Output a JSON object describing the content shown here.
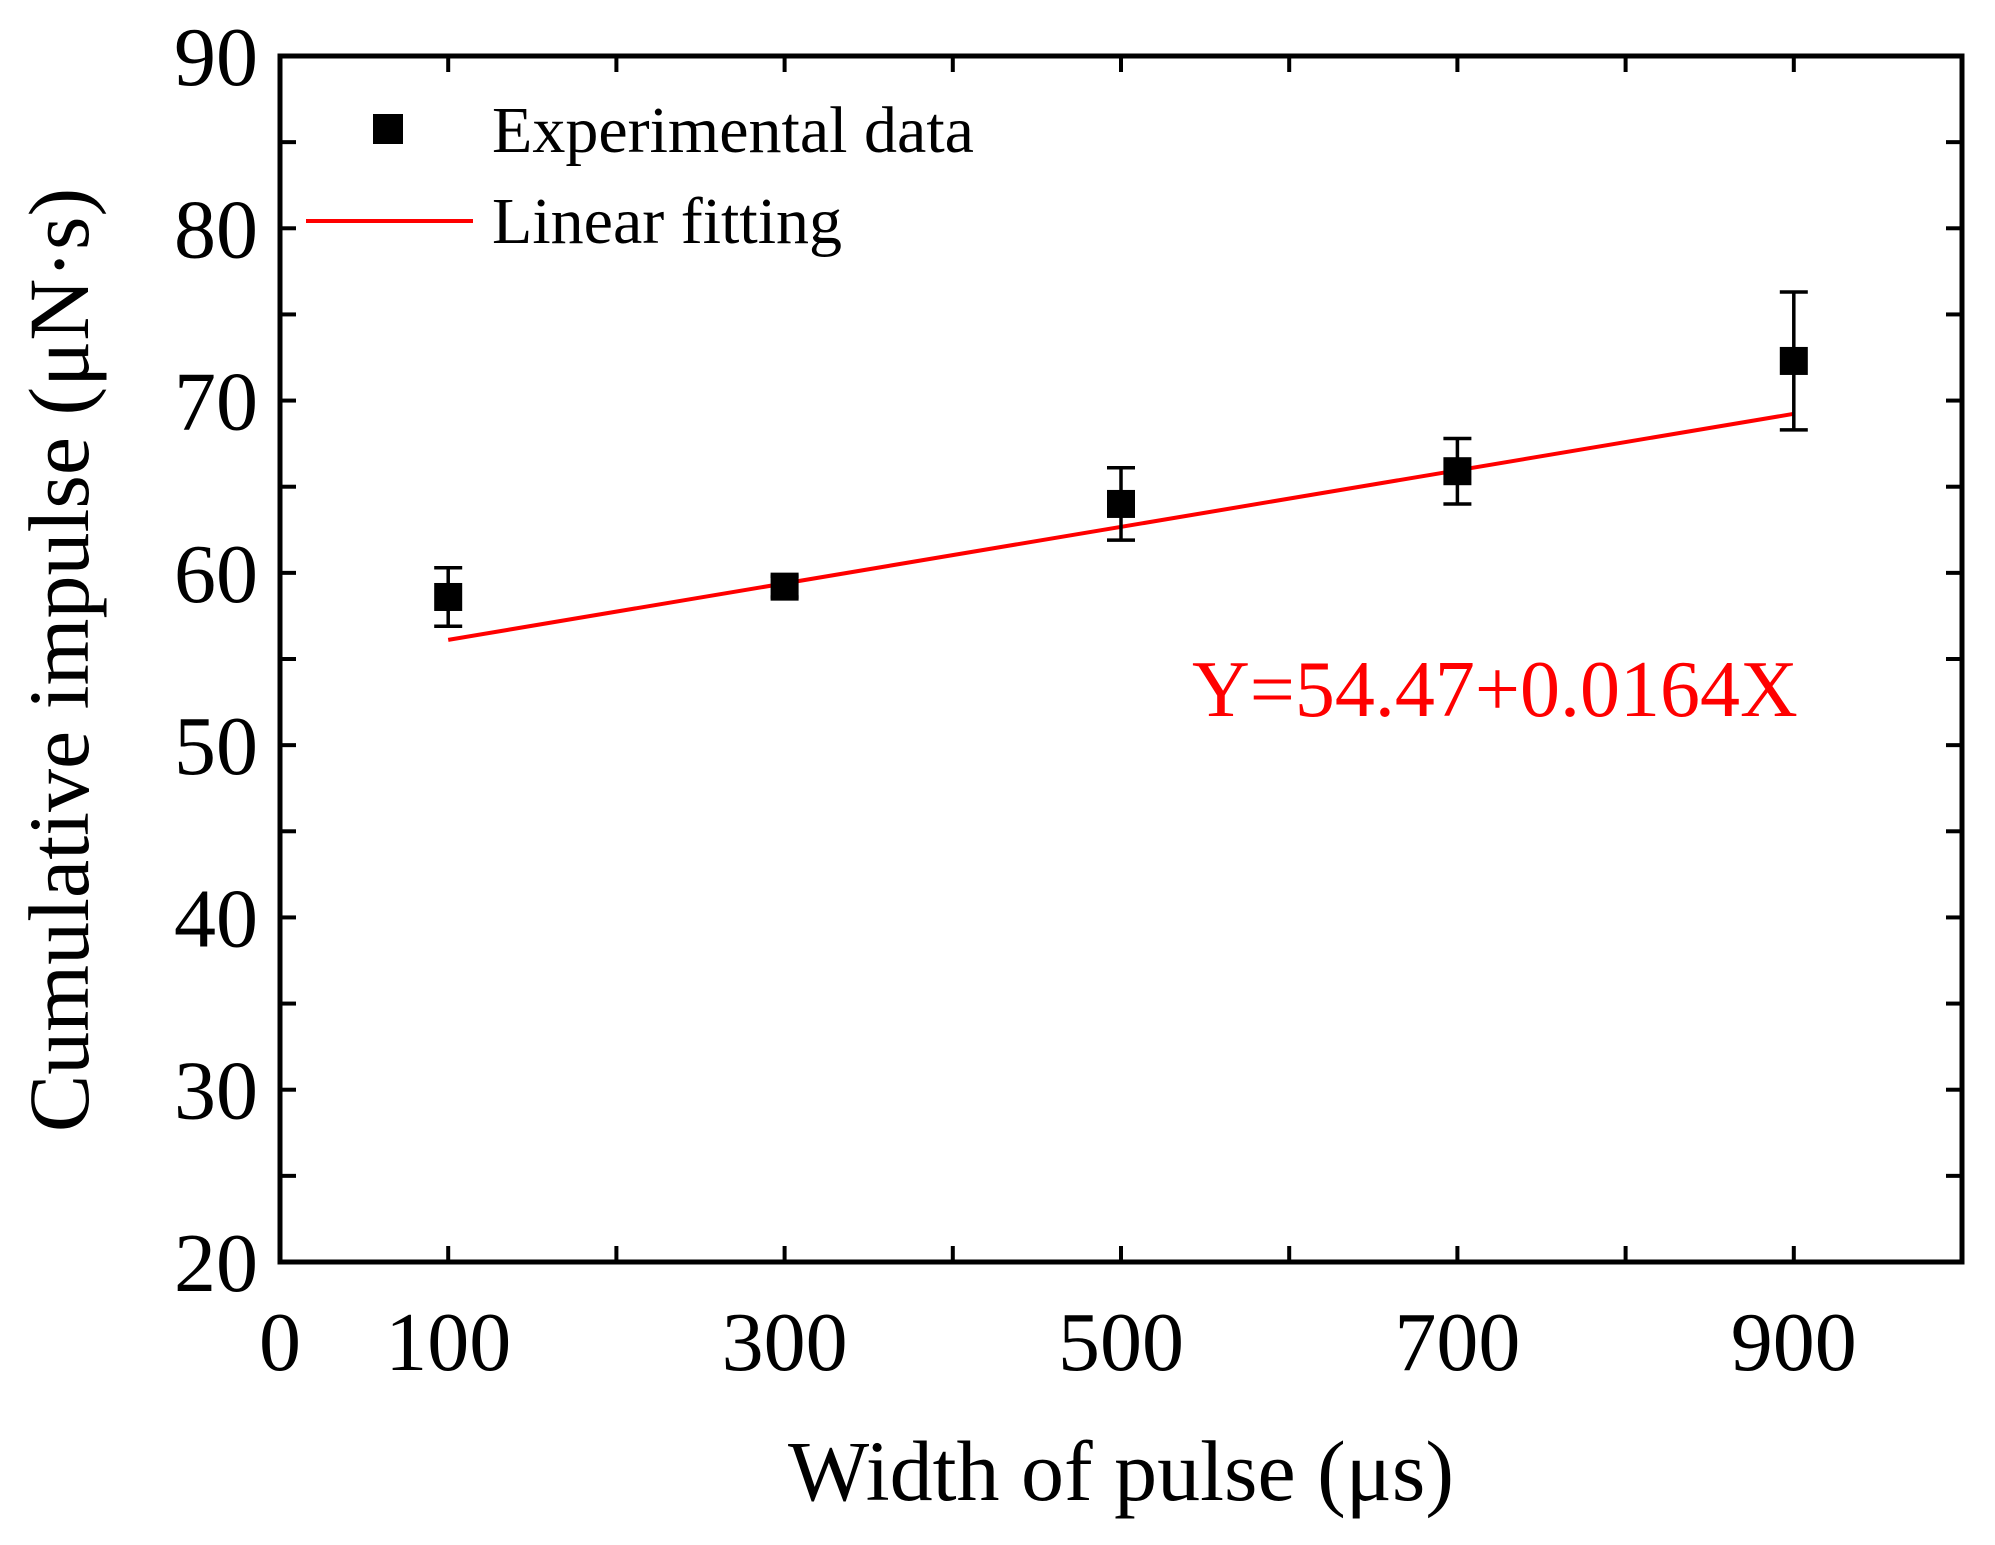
{
  "chart_data": {
    "type": "scatter",
    "xlabel": "Width of pulse (μs)",
    "ylabel": "Cumulative impulse (μN·s)",
    "xlim": [
      0,
      1000
    ],
    "ylim": [
      20,
      90
    ],
    "x_ticks": [
      0,
      100,
      300,
      500,
      700,
      900
    ],
    "x_minor_ticks": [
      100,
      200,
      300,
      400,
      500,
      600,
      700,
      800,
      900
    ],
    "y_ticks": [
      20,
      30,
      40,
      50,
      60,
      70,
      80,
      90
    ],
    "legend_position": "top-left",
    "series": [
      {
        "name": "Experimental data",
        "kind": "points",
        "color": "#000000",
        "x": [
          100,
          300,
          500,
          700,
          900
        ],
        "y": [
          58.6,
          59.2,
          64.0,
          65.9,
          72.3
        ],
        "error": [
          1.7,
          0.6,
          2.1,
          1.9,
          4.0
        ]
      },
      {
        "name": "Linear fitting",
        "kind": "line",
        "color": "#ff0000",
        "intercept": 54.47,
        "slope": 0.0164,
        "x_range": [
          100,
          900
        ]
      }
    ],
    "annotation": {
      "text": "Y=54.47+0.0164X",
      "color": "#ff0000"
    }
  }
}
